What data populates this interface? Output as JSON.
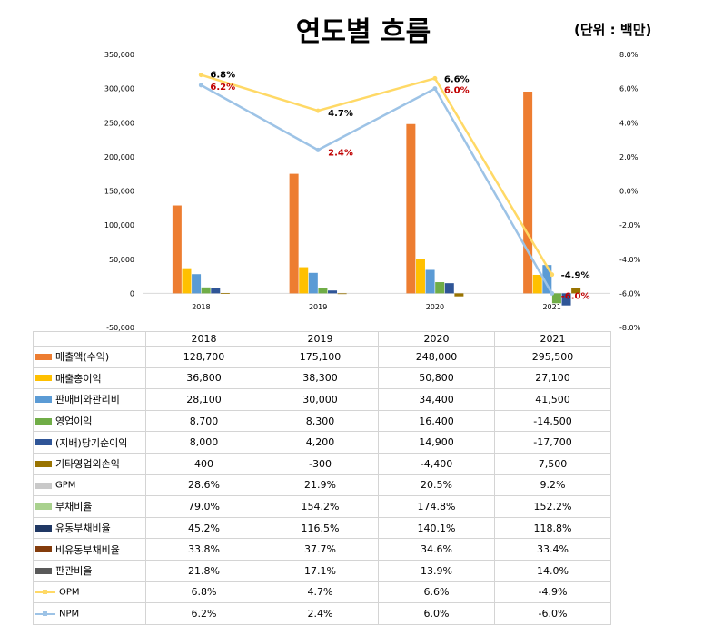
{
  "header": {
    "title": "연도별 흐름",
    "unit": "(단위 : 백만)"
  },
  "chart_data": {
    "type": "bar",
    "categories": [
      "2018",
      "2019",
      "2020",
      "2021"
    ],
    "y_left": {
      "min": -50000,
      "max": 350000,
      "step": 50000,
      "tick_labels": [
        "-50,000",
        "0",
        "50,000",
        "100,000",
        "150,000",
        "200,000",
        "250,000",
        "300,000",
        "350,000"
      ]
    },
    "y_right": {
      "min": -8.0,
      "max": 8.0,
      "step": 2.0,
      "tick_labels": [
        "-8.0%",
        "-6.0%",
        "-4.0%",
        "-2.0%",
        "0.0%",
        "2.0%",
        "4.0%",
        "6.0%",
        "8.0%"
      ]
    },
    "bar_series": [
      {
        "name": "매출액(수익)",
        "color": "#ED7D31",
        "values": [
          128700,
          175100,
          248000,
          295500
        ]
      },
      {
        "name": "매출총이익",
        "color": "#FFC000",
        "values": [
          36800,
          38300,
          50800,
          27100
        ]
      },
      {
        "name": "판매비와관리비",
        "color": "#5B9BD5",
        "values": [
          28100,
          30000,
          34400,
          41500
        ]
      },
      {
        "name": "영업이익",
        "color": "#70AD47",
        "values": [
          8700,
          8300,
          16400,
          -14500
        ]
      },
      {
        "name": "(지배)당기순이익",
        "color": "#2F5597",
        "values": [
          8000,
          4200,
          14900,
          -17700
        ]
      },
      {
        "name": "기타영업외손익",
        "color": "#997300",
        "values": [
          400,
          -300,
          -4400,
          7500
        ]
      }
    ],
    "line_series": [
      {
        "name": "OPM",
        "color": "#FFD966",
        "values": [
          6.8,
          4.7,
          6.6,
          -4.9
        ],
        "labels": [
          "6.8%",
          "4.7%",
          "6.6%",
          "-4.9%"
        ],
        "label_color": "#000000"
      },
      {
        "name": "NPM",
        "color": "#9DC3E6",
        "values": [
          6.2,
          2.4,
          6.0,
          -6.0
        ],
        "labels": [
          "6.2%",
          "2.4%",
          "6.0%",
          "-6.0%"
        ],
        "label_color": "#C00000"
      }
    ]
  },
  "table": {
    "columns": [
      "2018",
      "2019",
      "2020",
      "2021"
    ],
    "rows": [
      {
        "name": "매출액(수익)",
        "key": "box",
        "color": "#ED7D31",
        "values": [
          "128,700",
          "175,100",
          "248,000",
          "295,500"
        ]
      },
      {
        "name": "매출총이익",
        "key": "box",
        "color": "#FFC000",
        "values": [
          "36,800",
          "38,300",
          "50,800",
          "27,100"
        ]
      },
      {
        "name": "판매비와관리비",
        "key": "box",
        "color": "#5B9BD5",
        "values": [
          "28,100",
          "30,000",
          "34,400",
          "41,500"
        ]
      },
      {
        "name": "영업이익",
        "key": "box",
        "color": "#70AD47",
        "values": [
          "8,700",
          "8,300",
          "16,400",
          "-14,500"
        ]
      },
      {
        "name": "(지배)당기순이익",
        "key": "box",
        "color": "#2F5597",
        "values": [
          "8,000",
          "4,200",
          "14,900",
          "-17,700"
        ]
      },
      {
        "name": "기타영업외손익",
        "key": "box",
        "color": "#997300",
        "values": [
          "400",
          "-300",
          "-4,400",
          "7,500"
        ]
      },
      {
        "name": "GPM",
        "key": "box",
        "color": "#C9C9C9",
        "values": [
          "28.6%",
          "21.9%",
          "20.5%",
          "9.2%"
        ]
      },
      {
        "name": "부채비율",
        "key": "box",
        "color": "#A9D18E",
        "values": [
          "79.0%",
          "154.2%",
          "174.8%",
          "152.2%"
        ]
      },
      {
        "name": "유동부채비율",
        "key": "box",
        "color": "#203864",
        "values": [
          "45.2%",
          "116.5%",
          "140.1%",
          "118.8%"
        ]
      },
      {
        "name": "비유동부채비율",
        "key": "box",
        "color": "#843C0C",
        "values": [
          "33.8%",
          "37.7%",
          "34.6%",
          "33.4%"
        ]
      },
      {
        "name": "판관비율",
        "key": "box",
        "color": "#595959",
        "values": [
          "21.8%",
          "17.1%",
          "13.9%",
          "14.0%"
        ]
      },
      {
        "name": "OPM",
        "key": "line",
        "color": "#FFD966",
        "values": [
          "6.8%",
          "4.7%",
          "6.6%",
          "-4.9%"
        ]
      },
      {
        "name": "NPM",
        "key": "line",
        "color": "#9DC3E6",
        "values": [
          "6.2%",
          "2.4%",
          "6.0%",
          "-6.0%"
        ]
      }
    ]
  }
}
